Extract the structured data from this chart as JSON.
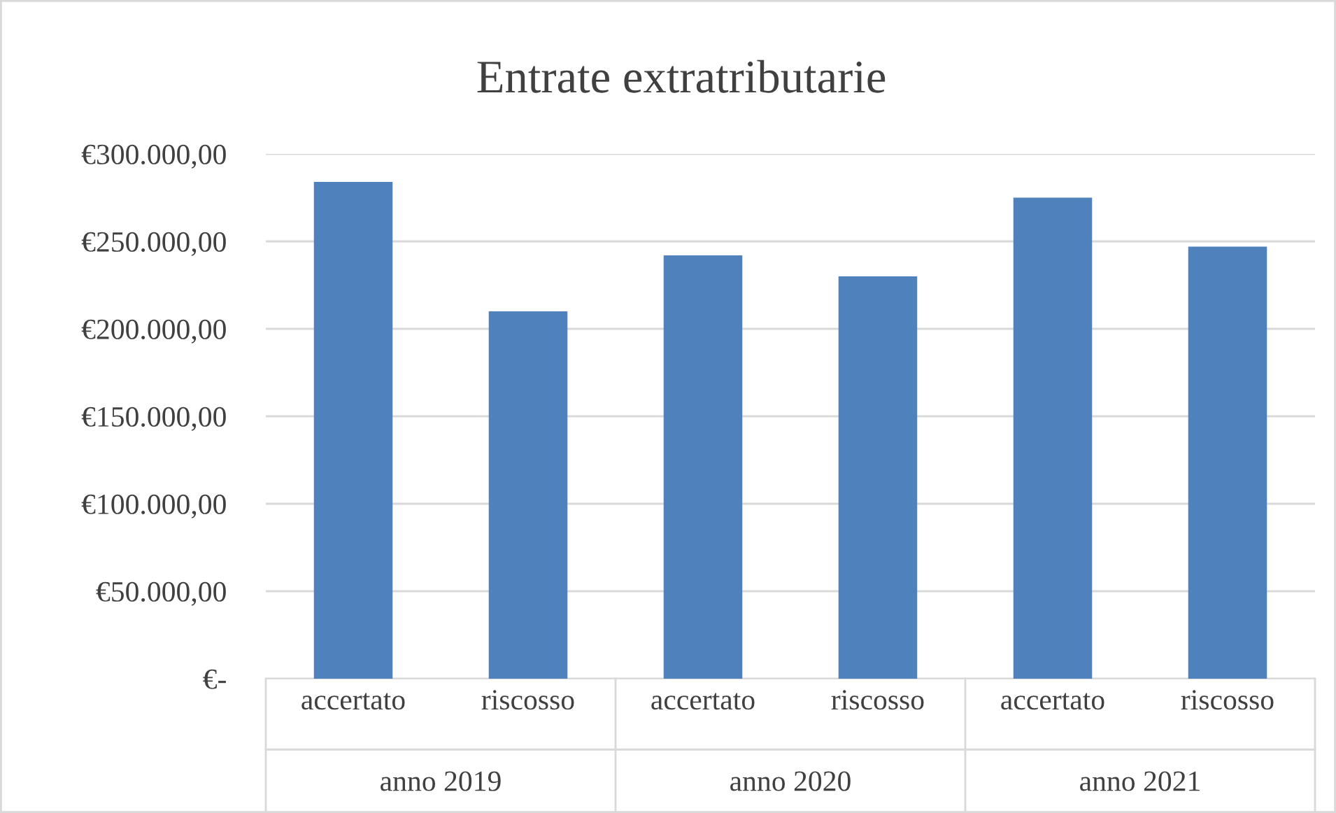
{
  "chart_data": {
    "type": "bar",
    "title": "Entrate extratributarie",
    "categories": [
      "accertato",
      "riscosso",
      "accertato",
      "riscosso",
      "accertato",
      "riscosso"
    ],
    "annotations": [
      "anno 2019",
      "anno 2020",
      "anno 2021"
    ],
    "values": [
      284000,
      210000,
      242000,
      230000,
      275000,
      247000
    ],
    "color": "#4f81bd",
    "ylim": [
      0,
      300000
    ],
    "yticks": [
      {
        "value": 0,
        "label": "€-"
      },
      {
        "value": 50000,
        "label": "€50.000,00"
      },
      {
        "value": 100000,
        "label": "€100.000,00"
      },
      {
        "value": 150000,
        "label": "€150.000,00"
      },
      {
        "value": 200000,
        "label": "€200.000,00"
      },
      {
        "value": 250000,
        "label": "€250.000,00"
      },
      {
        "value": 300000,
        "label": "€300.000,00"
      }
    ],
    "grid": "y",
    "legend": false
  }
}
